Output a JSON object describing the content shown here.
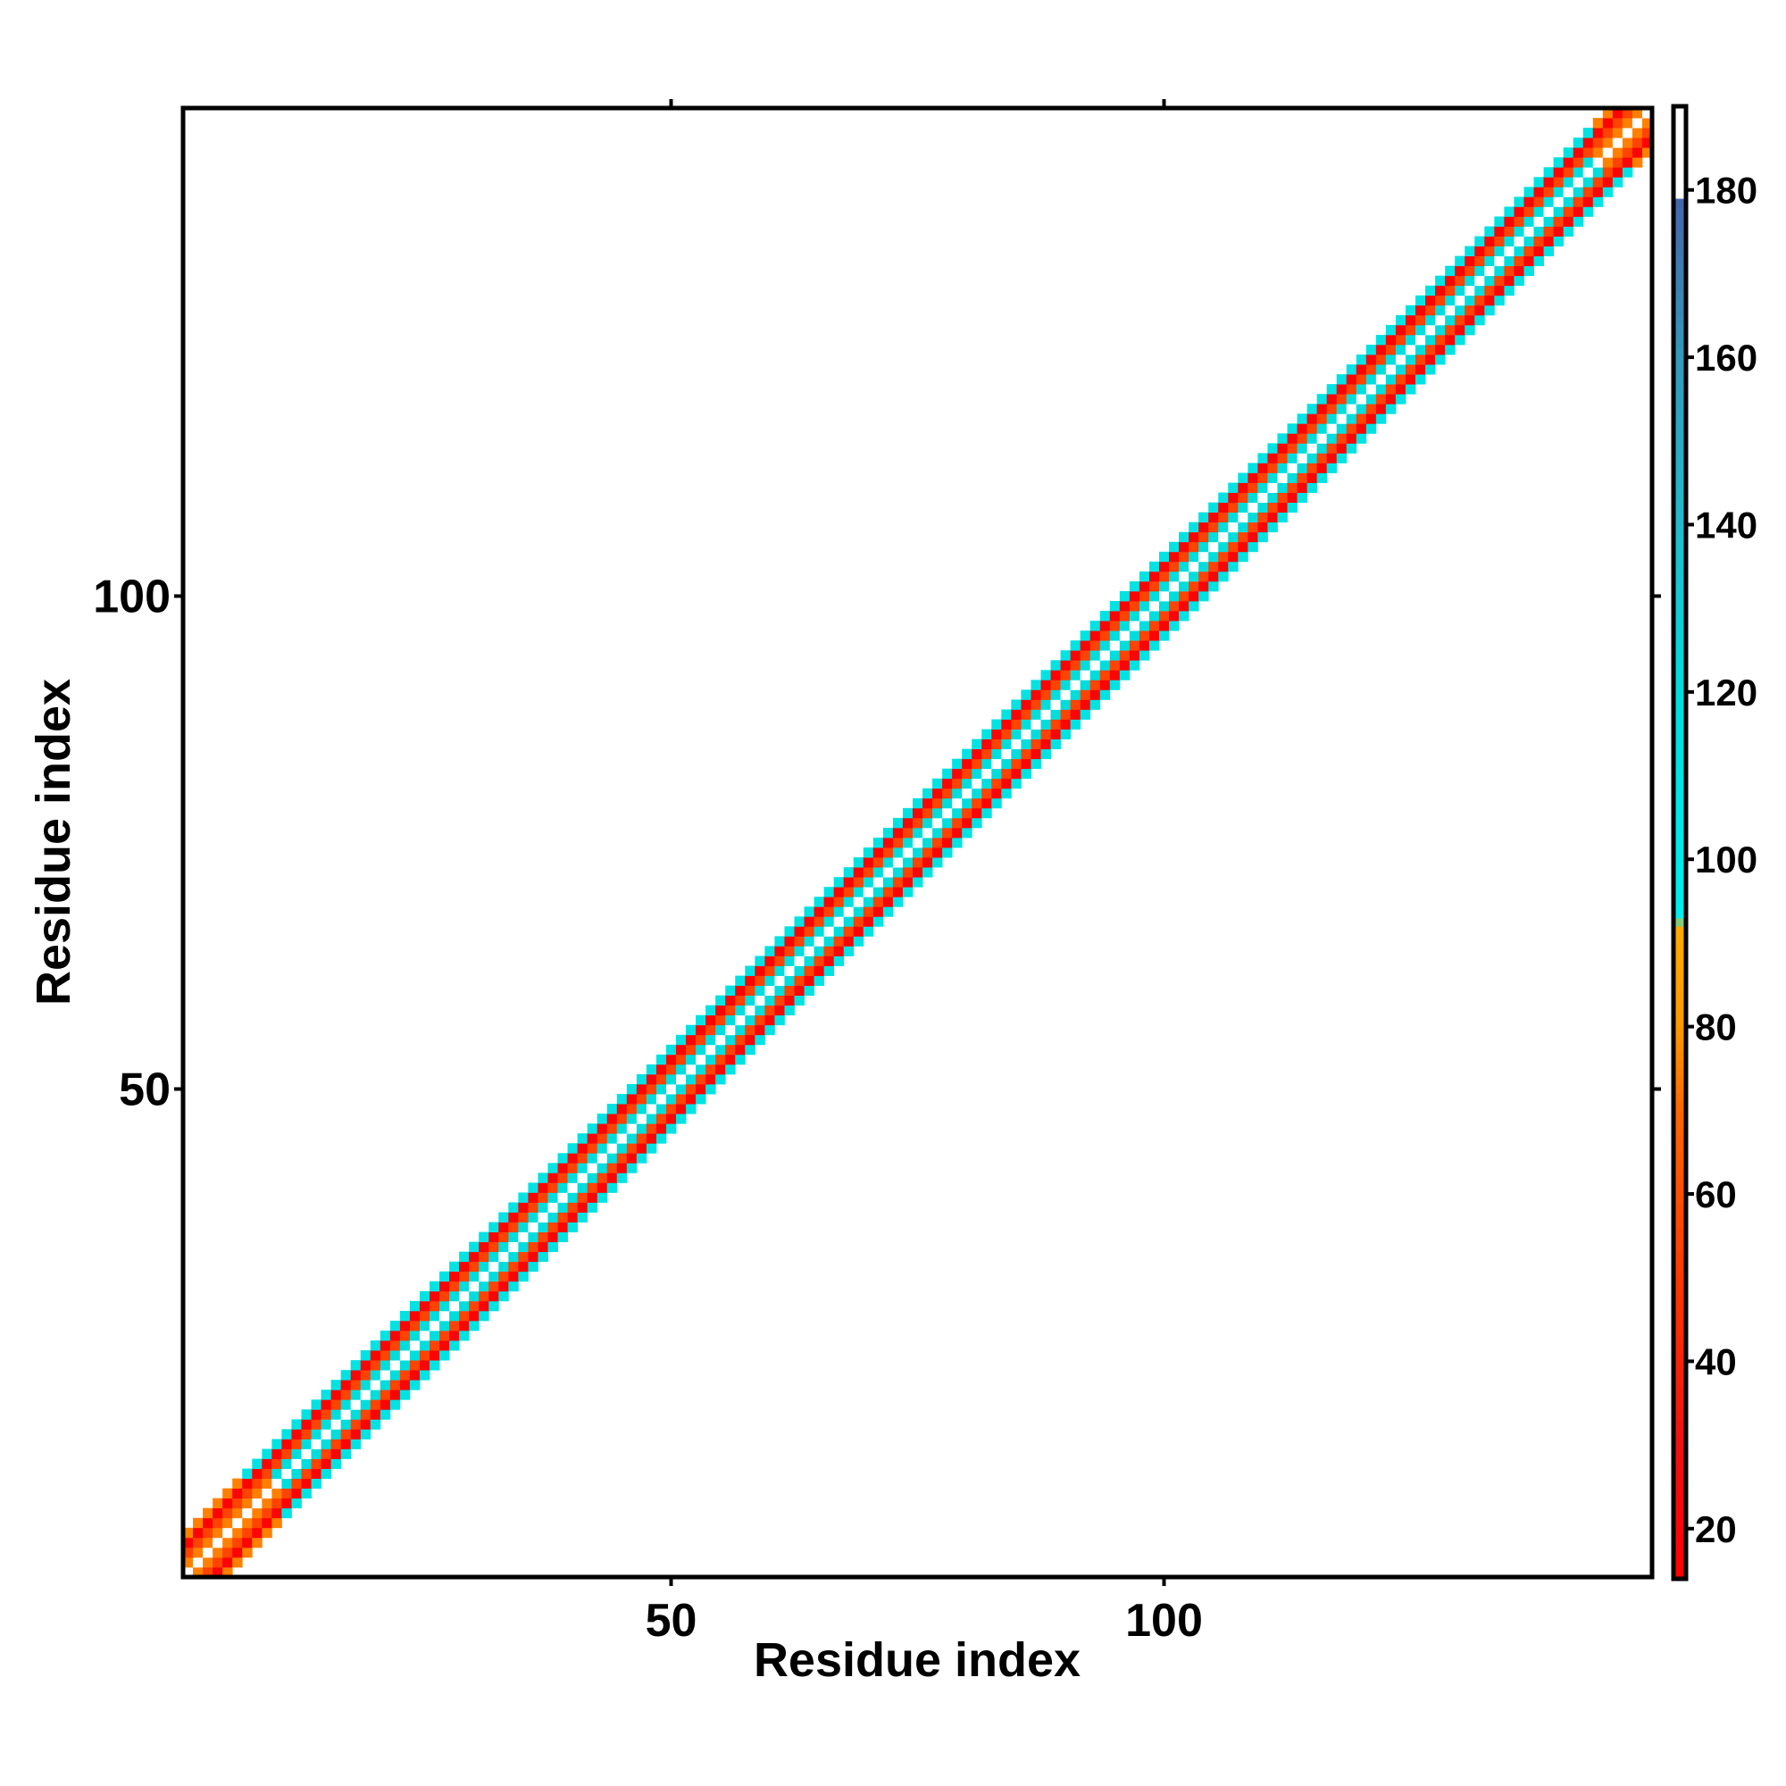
{
  "chart_data": {
    "type": "heatmap",
    "title": "",
    "xlabel": "Residue index",
    "ylabel": "Residue index",
    "n_residues": 149,
    "xlim": [
      0.5,
      149.5
    ],
    "ylim": [
      0.5,
      149.5
    ],
    "x_ticks": [
      50,
      100
    ],
    "y_ticks": [
      50,
      100
    ],
    "band": {
      "description_of_pattern": "diagonal band |i-j| <= 4",
      "by_offset": [
        {
          "offset": 0,
          "value": 190
        },
        {
          "offset": 1,
          "value": 120
        },
        {
          "offset": 2,
          "value": 55
        },
        {
          "offset": 3,
          "value": 18
        },
        {
          "offset": 4,
          "value": 110
        }
      ],
      "end_residues_low_values": {
        "first": 10,
        "last": 6,
        "value": 75
      }
    },
    "colorbar": {
      "min": 14,
      "max": 190,
      "ticks": [
        20,
        40,
        60,
        80,
        100,
        120,
        140,
        160,
        180
      ],
      "stops": [
        {
          "value": 14,
          "color": "#ff0000"
        },
        {
          "value": 30,
          "color": "#ee1111"
        },
        {
          "value": 48,
          "color": "#ff3300"
        },
        {
          "value": 70,
          "color": "#ff6600"
        },
        {
          "value": 80,
          "color": "#ff9900"
        },
        {
          "value": 92,
          "color": "#ffaa00"
        },
        {
          "value": 93,
          "color": "#00eeee"
        },
        {
          "value": 120,
          "color": "#00dddd"
        },
        {
          "value": 140,
          "color": "#22bbcc"
        },
        {
          "value": 160,
          "color": "#3399bb"
        },
        {
          "value": 179,
          "color": "#4466aa"
        },
        {
          "value": 179.5,
          "color": "#ffffff"
        },
        {
          "value": 190,
          "color": "#ffffff"
        }
      ]
    }
  }
}
